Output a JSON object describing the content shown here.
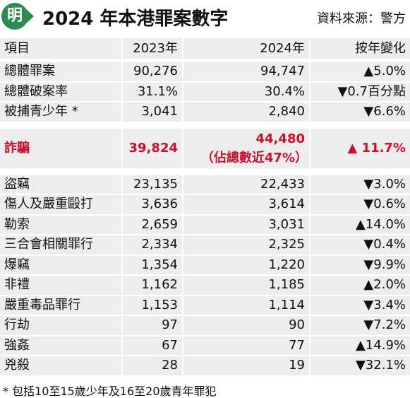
{
  "header": {
    "logo": "明",
    "title": "2024 年本港罪案數字",
    "source": "資料來源：警方"
  },
  "table": {
    "columns": [
      "項目",
      "2023年",
      "2024年",
      "按年變化"
    ],
    "groups": [
      [
        [
          "總體罪案",
          "90,276",
          "94,747",
          "▲5.0%"
        ],
        [
          "總體破案率",
          "31.1%",
          "30.4%",
          "▼0.7百分點"
        ],
        [
          "被捕青少年 *",
          "3,041",
          "2,840",
          "▼6.6%"
        ]
      ],
      [
        [
          "詐騙",
          "39,824",
          "44,480",
          "▲ 11.7%"
        ]
      ],
      [
        [
          "盜竊",
          "23,135",
          "22,433",
          "▼3.0%"
        ],
        [
          "傷人及嚴重毆打",
          "3,636",
          "3,614",
          "▼0.6%"
        ],
        [
          "勒索",
          "2,659",
          "3,031",
          "▲14.0%"
        ],
        [
          "三合會相關罪行",
          "2,334",
          "2,325",
          "▼0.4%"
        ],
        [
          "爆竊",
          "1,354",
          "1,220",
          "▼9.9%"
        ],
        [
          "非禮",
          "1,162",
          "1,185",
          "▲2.0%"
        ],
        [
          "嚴重毒品罪行",
          "1,153",
          "1,114",
          "▼3.4%"
        ],
        [
          "行劫",
          "97",
          "90",
          "▼7.2%"
        ],
        [
          "強姦",
          "67",
          "77",
          "▲14.9%"
        ],
        [
          "兇殺",
          "28",
          "19",
          "▼32.1%"
        ]
      ]
    ],
    "highlight_note": "（佔總數近47%）"
  },
  "footnote": "* 包括10至15歲少年及16至20歲青年罪犯"
}
